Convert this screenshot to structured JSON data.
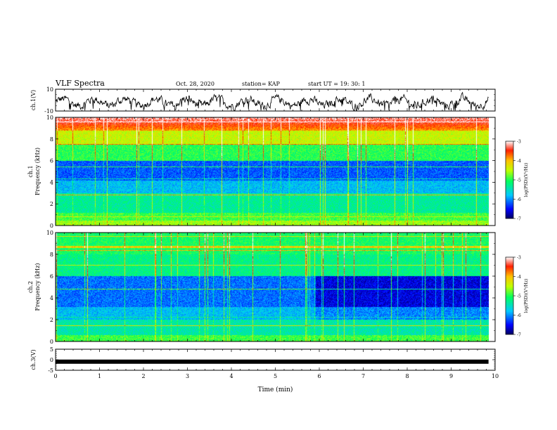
{
  "header": {
    "title": "VLF Spectra",
    "date": "Oct. 28, 2020",
    "station": "station= KAP",
    "start": "start  UT =   19: 30: 1"
  },
  "chart_data": [
    {
      "type": "line",
      "panel": "ch1-waveform",
      "ylabel": "ch.1(V)",
      "ylim": [
        -10,
        10
      ],
      "yticks": [
        "10",
        "-10"
      ],
      "xlim": [
        0,
        10
      ],
      "series": [
        {
          "description_free": true,
          "x_end": 9.85,
          "mean": 0,
          "amplitude": 6
        }
      ]
    },
    {
      "type": "heatmap",
      "panel": "ch1-spectrogram",
      "ylabel": "ch.1\nFrequency (kHz)",
      "ylabel_lines": [
        "ch.1",
        "Frequency  (kHz)"
      ],
      "ylim": [
        0,
        10
      ],
      "yticks": [
        "0",
        "2",
        "4",
        "6",
        "8",
        "10"
      ],
      "xlim": [
        0,
        10
      ],
      "x_end": 9.85,
      "colorbar": {
        "min": -7,
        "max": -3,
        "ticks": [
          "-3",
          "-4",
          "-5",
          "-6",
          "-7"
        ],
        "label": "log(PSD)(V²/Hz)"
      }
    },
    {
      "type": "heatmap",
      "panel": "ch2-spectrogram",
      "ylabel_lines": [
        "ch.2",
        "Frequency  (kHz)"
      ],
      "ylim": [
        0,
        10
      ],
      "yticks": [
        "0",
        "2",
        "4",
        "6",
        "8",
        "10"
      ],
      "xlim": [
        0,
        10
      ],
      "x_end": 9.85,
      "colorbar": {
        "min": -7,
        "max": -3,
        "ticks": [
          "-3",
          "-4",
          "-5",
          "-6",
          "-7"
        ],
        "label": "log(PSD)(V²/Hz)"
      }
    },
    {
      "type": "line",
      "panel": "ch3-waveform",
      "ylabel": "ch.3(V)",
      "ylim": [
        -5,
        5
      ],
      "yticks": [
        "5",
        "0",
        "-5"
      ],
      "xlim": [
        0,
        10
      ],
      "series": [
        {
          "x_end": 9.85,
          "value": -0.9
        }
      ]
    }
  ],
  "xaxis": {
    "label": "Time  (min)",
    "ticks": [
      "0",
      "1",
      "2",
      "3",
      "4",
      "5",
      "6",
      "7",
      "8",
      "9",
      "10"
    ]
  }
}
